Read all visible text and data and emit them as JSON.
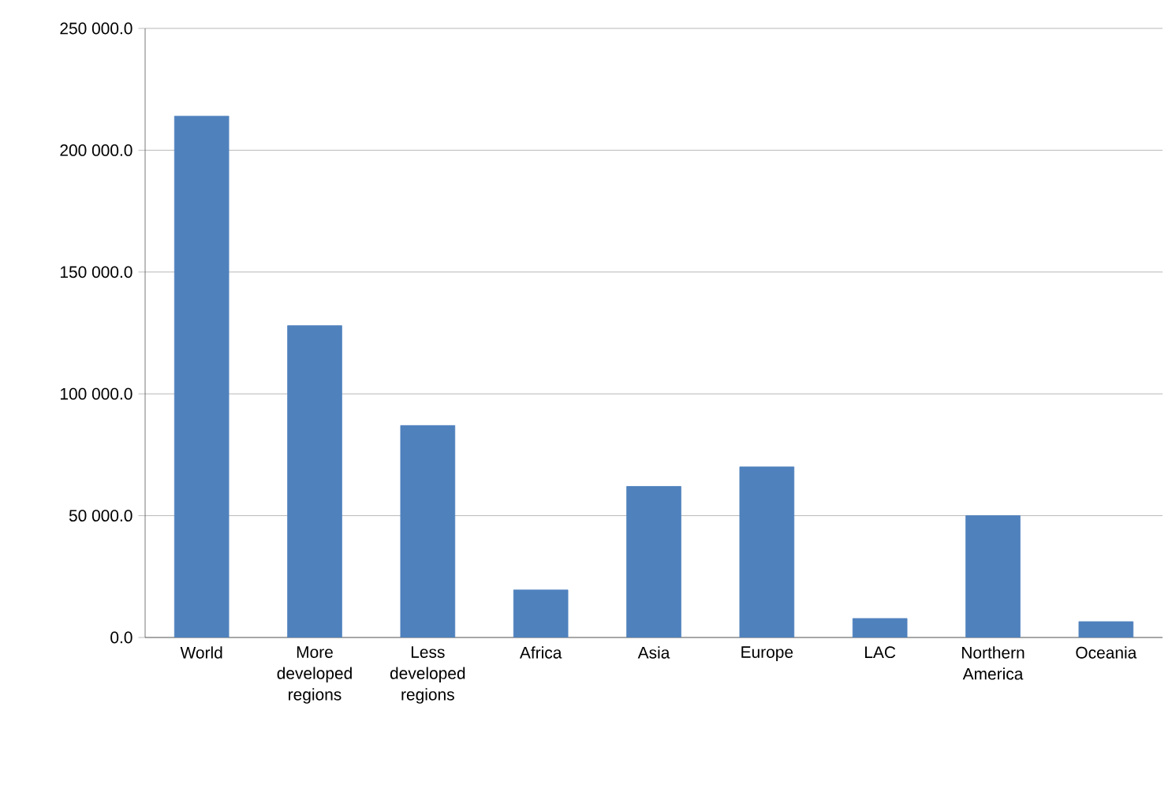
{
  "chart_data": {
    "type": "bar",
    "categories": [
      "World",
      "More developed regions",
      "Less developed regions",
      "Africa",
      "Asia",
      "Europe",
      "LAC",
      "Northern America",
      "Oceania"
    ],
    "values": [
      214000,
      128000,
      87000,
      19500,
      62000,
      70000,
      7800,
      50000,
      6500
    ],
    "color": "#4f81bd",
    "ylim": [
      0,
      250000
    ],
    "yticks": [
      {
        "value": 0,
        "label": "0.0"
      },
      {
        "value": 50000,
        "label": "50 000.0"
      },
      {
        "value": 100000,
        "label": "100 000.0"
      },
      {
        "value": 150000,
        "label": "150 000.0"
      },
      {
        "value": 200000,
        "label": "200 000.0"
      },
      {
        "value": 250000,
        "label": "250 000.0"
      }
    ],
    "grid": "y"
  }
}
